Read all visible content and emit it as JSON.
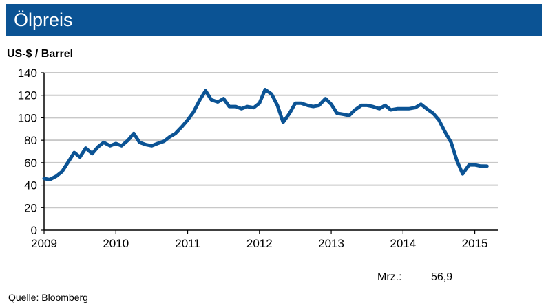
{
  "header": {
    "title": "Ölpreis"
  },
  "unit_label": "US-$ / Barrel",
  "annotation": {
    "label": "Mrz.:",
    "value": "56,9"
  },
  "source": "Quelle:  Bloomberg",
  "colors": {
    "header_bg": "#0b5394",
    "line": "#0b5394",
    "grid": "#c8c8c8"
  },
  "chart_data": {
    "type": "line",
    "title": "Ölpreis",
    "ylabel": "US-$ / Barrel",
    "xlabel": "",
    "ylim": [
      0,
      140
    ],
    "xlim": [
      2009,
      2015.33
    ],
    "y_ticks": [
      "0",
      "20",
      "40",
      "60",
      "80",
      "100",
      "120",
      "140"
    ],
    "x_ticks": [
      "2009",
      "2010",
      "2011",
      "2012",
      "2013",
      "2014",
      "2015"
    ],
    "grid": true,
    "series": [
      {
        "x": [
          2009.0,
          2009.08,
          2009.17,
          2009.25,
          2009.33,
          2009.42,
          2009.5,
          2009.58,
          2009.67,
          2009.75,
          2009.83,
          2009.92,
          2010.0,
          2010.08,
          2010.17,
          2010.25,
          2010.33,
          2010.42,
          2010.5,
          2010.58,
          2010.67,
          2010.75,
          2010.83,
          2010.92,
          2011.0,
          2011.08,
          2011.17,
          2011.25,
          2011.33,
          2011.42,
          2011.5,
          2011.58,
          2011.67,
          2011.75,
          2011.83,
          2011.92,
          2012.0,
          2012.08,
          2012.17,
          2012.25,
          2012.33,
          2012.42,
          2012.5,
          2012.58,
          2012.67,
          2012.75,
          2012.83,
          2012.92,
          2013.0,
          2013.08,
          2013.17,
          2013.25,
          2013.33,
          2013.42,
          2013.5,
          2013.58,
          2013.67,
          2013.75,
          2013.83,
          2013.92,
          2014.0,
          2014.08,
          2014.17,
          2014.25,
          2014.33,
          2014.42,
          2014.5,
          2014.58,
          2014.67,
          2014.75,
          2014.83,
          2014.92,
          2015.0,
          2015.08,
          2015.17
        ],
        "values": [
          46,
          45,
          48,
          52,
          60,
          69,
          65,
          73,
          68,
          74,
          78,
          75,
          77,
          75,
          80,
          86,
          78,
          76,
          75,
          77,
          79,
          83,
          86,
          92,
          98,
          105,
          116,
          124,
          116,
          114,
          117,
          110,
          110,
          108,
          110,
          109,
          113,
          125,
          121,
          111,
          96,
          104,
          113,
          113,
          111,
          110,
          111,
          117,
          112,
          104,
          103,
          102,
          107,
          111,
          111,
          110,
          108,
          111,
          107,
          108,
          108,
          108,
          109,
          112,
          108,
          104,
          98,
          88,
          78,
          62,
          50,
          58,
          58,
          57,
          56.9
        ]
      }
    ]
  }
}
